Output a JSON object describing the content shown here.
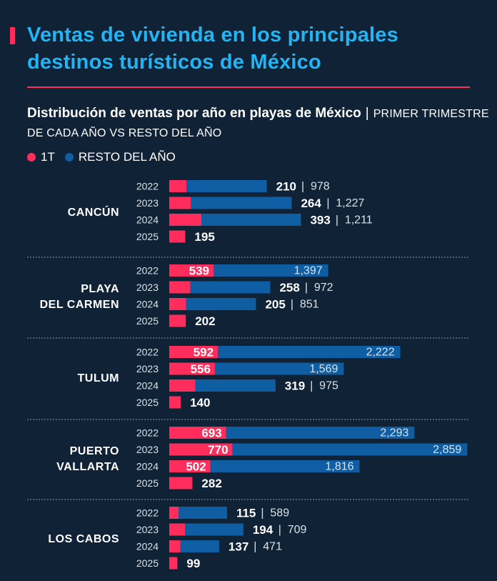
{
  "title": "Ventas de vivienda en los principales destinos turísticos de México",
  "subtitle": {
    "bold": "Distribución de ventas por año en playas de México",
    "separator": "|",
    "note": "PRIMER TRIMESTRE DE CADA AÑO VS RESTO DEL AÑO"
  },
  "legend": [
    {
      "label": "1T",
      "color": "#ff2d5c"
    },
    {
      "label": "RESTO DEL AÑO",
      "color": "#0f5ea3"
    }
  ],
  "chart_data": {
    "type": "bar",
    "stacked": true,
    "orientation": "horizontal",
    "title": "Distribución de ventas por año en playas de México",
    "series": [
      {
        "name": "1T",
        "color": "#ff2d5c"
      },
      {
        "name": "RESTO DEL AÑO",
        "color": "#0f5ea3"
      }
    ],
    "groups": [
      {
        "name": [
          "CANCÚN"
        ],
        "rows": [
          {
            "year": "2022",
            "q1": 210,
            "rest": 978
          },
          {
            "year": "2023",
            "q1": 264,
            "rest": 1227
          },
          {
            "year": "2024",
            "q1": 393,
            "rest": 1211
          },
          {
            "year": "2025",
            "q1": 195,
            "rest": null
          }
        ]
      },
      {
        "name": [
          "PLAYA",
          "DEL CARMEN"
        ],
        "rows": [
          {
            "year": "2022",
            "q1": 539,
            "rest": 1397
          },
          {
            "year": "2023",
            "q1": 258,
            "rest": 972
          },
          {
            "year": "2024",
            "q1": 205,
            "rest": 851
          },
          {
            "year": "2025",
            "q1": 202,
            "rest": null
          }
        ]
      },
      {
        "name": [
          "TULUM"
        ],
        "rows": [
          {
            "year": "2022",
            "q1": 592,
            "rest": 2222
          },
          {
            "year": "2023",
            "q1": 556,
            "rest": 1569
          },
          {
            "year": "2024",
            "q1": 319,
            "rest": 975
          },
          {
            "year": "2025",
            "q1": 140,
            "rest": null
          }
        ]
      },
      {
        "name": [
          "PUERTO",
          "VALLARTA"
        ],
        "rows": [
          {
            "year": "2022",
            "q1": 693,
            "rest": 2293
          },
          {
            "year": "2023",
            "q1": 770,
            "rest": 2859
          },
          {
            "year": "2024",
            "q1": 502,
            "rest": 1816
          },
          {
            "year": "2025",
            "q1": 282,
            "rest": null
          }
        ]
      },
      {
        "name": [
          "LOS CABOS"
        ],
        "rows": [
          {
            "year": "2022",
            "q1": 115,
            "rest": 589
          },
          {
            "year": "2023",
            "q1": 194,
            "rest": 709
          },
          {
            "year": "2024",
            "q1": 137,
            "rest": 471
          },
          {
            "year": "2025",
            "q1": 99,
            "rest": null
          }
        ]
      }
    ]
  }
}
